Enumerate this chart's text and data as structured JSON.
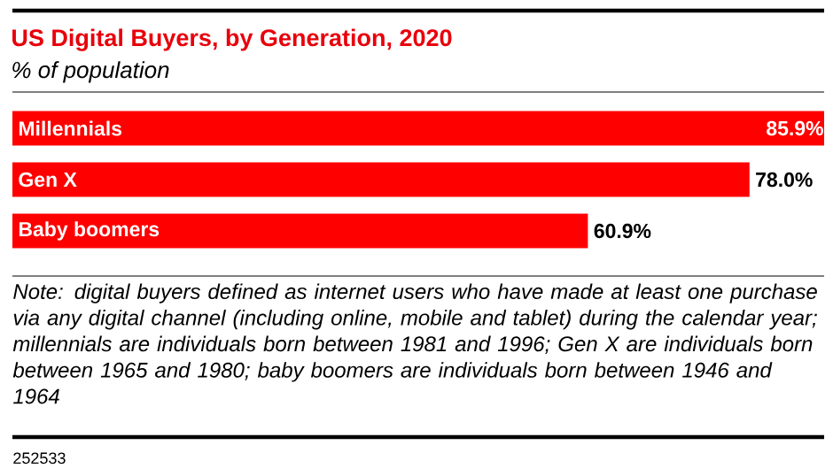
{
  "chart_data": {
    "type": "bar",
    "orientation": "horizontal",
    "title": "US Digital Buyers, by Generation, 2020",
    "subtitle": "% of population",
    "categories": [
      "Millennials",
      "Gen X",
      "Baby boomers"
    ],
    "values": [
      85.9,
      78.0,
      60.9
    ],
    "color": "#ff0000",
    "xlim": [
      0,
      85.9
    ],
    "value_labels": [
      "85.9%",
      "78.0%",
      "60.9%"
    ],
    "annotations": [
      "Note: digital buyers defined as internet users who have made at least one purchase via any digital channel (including online, mobile and tablet) during the calendar year; millennials are individuals born between 1981 and 1996; Gen X are individuals born between 1965 and 1980; baby boomers are individuals born between 1946 and 1964",
      "252533"
    ]
  }
}
